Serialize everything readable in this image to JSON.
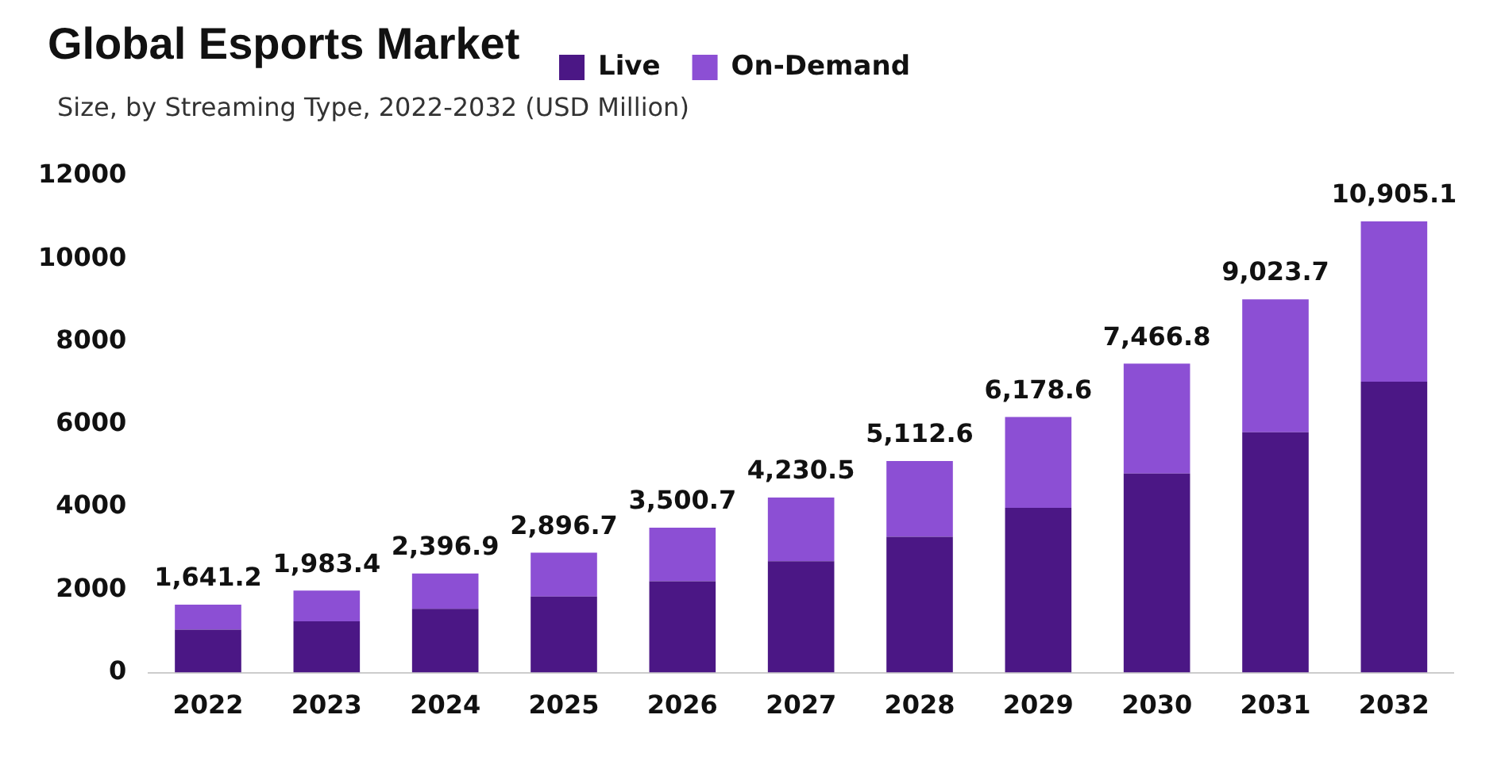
{
  "chart_data": {
    "type": "bar",
    "title": "Global Esports Market",
    "subtitle": "Size, by Streaming Type, 2022-2032 (USD Million)",
    "categories": [
      "2022",
      "2023",
      "2024",
      "2025",
      "2026",
      "2027",
      "2028",
      "2029",
      "2030",
      "2031",
      "2032"
    ],
    "series": [
      {
        "name": "Live",
        "color": "#4b1785",
        "values": [
          1040,
          1240,
          1540,
          1840,
          2210,
          2690,
          3280,
          3980,
          4810,
          5810,
          7030
        ]
      },
      {
        "name": "On-Demand",
        "color": "#8c4fd4",
        "values": [
          601.2,
          743.4,
          856.9,
          1056.7,
          1290.7,
          1540.5,
          1832.6,
          2198.6,
          2656.8,
          3213.7,
          3875.1
        ]
      }
    ],
    "stacked": true,
    "totals": [
      "1,641.2",
      "1,983.4",
      "2,396.9",
      "2,896.7",
      "3,500.7",
      "4,230.5",
      "5,112.6",
      "6,178.6",
      "7,466.8",
      "9,023.7",
      "10,905.1"
    ],
    "ylim": [
      0,
      12000
    ],
    "yticks": [
      0,
      2000,
      4000,
      6000,
      8000,
      10000,
      12000
    ],
    "grid": false,
    "legend": "top"
  }
}
